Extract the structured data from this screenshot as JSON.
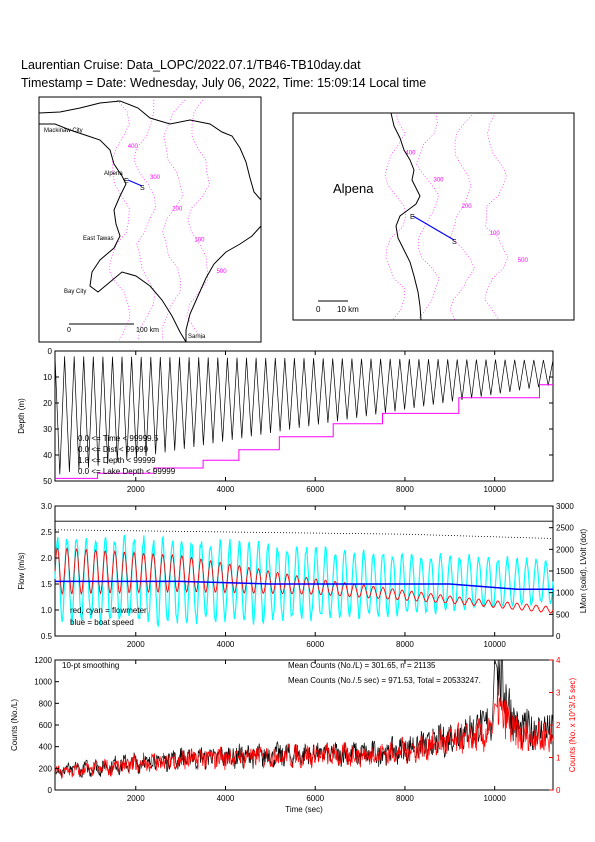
{
  "header": {
    "title_line": "Laurentian Cruise: Data_LOPC/2022.07.1/TB46-TB10day.dat",
    "timestamp_line": "Timestamp = Date: Wednesday, July 06, 2022, Time: 15:09:14 Local time"
  },
  "maps": {
    "left": {
      "places": [
        "Mackinaw City",
        "Alpena",
        "East Tawas",
        "Bay City",
        "Sarnia"
      ],
      "track_labels": [
        "E",
        "S"
      ],
      "scale_start": "0",
      "scale_end": "100 km"
    },
    "right": {
      "place": "Alpena",
      "track_labels": [
        "E",
        "S"
      ],
      "scale_start": "0",
      "scale_end": "10 km"
    },
    "contour_labels": [
      "400",
      "300",
      "200",
      "100",
      "500"
    ],
    "colors": {
      "contours": "#ff00ff",
      "track": "#0000ff",
      "land": "#000000"
    }
  },
  "chart_data": [
    {
      "type": "line",
      "panel": "depth",
      "ylabel": "Depth (m)",
      "ylim": [
        50,
        0
      ],
      "xlim": [
        200,
        11300
      ],
      "xticks": [
        2000,
        4000,
        6000,
        8000,
        10000
      ],
      "yticks": [
        0,
        10,
        20,
        30,
        40,
        50
      ],
      "legend": [
        "0.0 <= Time < 99999.5",
        "0.0 <= Dist < 99999",
        "1.8 <= Depth < 99999",
        "0.0 <= Lake Depth < 99999"
      ],
      "series": [
        {
          "color": "#000000",
          "tow_start": [
            200,
            49
          ],
          "tow_end": [
            11300,
            8
          ],
          "cycles": 52
        },
        {
          "color": "#ff00ff",
          "x": [
            200,
            1150,
            1150,
            2400,
            2400,
            3500,
            3500,
            4300,
            4300,
            5200,
            5200,
            6400,
            6400,
            7500,
            7500,
            9200,
            9200,
            11000,
            11000,
            11300
          ],
          "y": [
            49,
            49,
            47,
            47,
            45,
            45,
            42,
            42,
            38,
            38,
            33,
            33,
            28,
            28,
            24,
            24,
            18,
            18,
            13,
            13
          ]
        }
      ]
    },
    {
      "type": "line",
      "panel": "flow",
      "ylabel": "Flow (m/s)",
      "ylabel_right": "LMon (solid), LVolt (dot)",
      "ylim": [
        0.5,
        3.0
      ],
      "ylim_right": [
        0,
        3000
      ],
      "xticks": [
        2000,
        4000,
        6000,
        8000,
        10000
      ],
      "yticks": [
        0.5,
        1.0,
        1.5,
        2.0,
        2.5,
        3.0
      ],
      "yticks_right": [
        0,
        500,
        1000,
        1500,
        2000,
        2500,
        3000
      ],
      "legend": [
        "red, cyan = flowmeter",
        "blue = boat speed"
      ],
      "series": [
        {
          "color": "#00ffff",
          "center": [
            1.6,
            1.55,
            1.5,
            1.5,
            1.55
          ],
          "amplitude": [
            0.9,
            0.9,
            0.75,
            0.6,
            0.45
          ],
          "x": [
            200,
            3000,
            6000,
            9000,
            11300
          ]
        },
        {
          "color": "#ff0000",
          "center": [
            1.75,
            1.7,
            1.45,
            1.2,
            1.0
          ],
          "amplitude": [
            0.45,
            0.35,
            0.15,
            0.07,
            0.06
          ],
          "x": [
            200,
            3000,
            6000,
            9000,
            11300
          ]
        },
        {
          "color": "#0000ff",
          "x": [
            200,
            1500,
            3000,
            5000,
            7000,
            9000,
            10500,
            11300
          ],
          "y": [
            1.55,
            1.55,
            1.55,
            1.5,
            1.5,
            1.5,
            1.4,
            1.4
          ]
        },
        {
          "color": "#000000",
          "style": "solid",
          "x": [
            200,
            11300
          ],
          "y_right": [
            2650,
            2650
          ]
        },
        {
          "color": "#000000",
          "style": "dot",
          "x": [
            200,
            8000,
            11300
          ],
          "y_right": [
            2450,
            2350,
            2250
          ]
        }
      ]
    },
    {
      "type": "line",
      "panel": "counts",
      "xlabel": "Time (sec)",
      "ylabel": "Counts (No./L)",
      "ylabel_right": "Counts (No. x 10^3/.5 sec)",
      "ylim": [
        0,
        1200
      ],
      "ylim_right": [
        0,
        4
      ],
      "xticks": [
        2000,
        4000,
        6000,
        8000,
        10000
      ],
      "yticks": [
        0,
        200,
        400,
        600,
        800,
        1000,
        1200
      ],
      "yticks_right": [
        0,
        1,
        2,
        3,
        4
      ],
      "annotations": {
        "smoothing": "10-pt smoothing",
        "mean_line1": "Mean Counts (No./L) = 301.65, n = 21135",
        "mean_line2": "Mean Counts (No./.5 sec) = 971.53, Total = 20533247."
      },
      "series": [
        {
          "color": "#000000",
          "x": [
            200,
            1000,
            2000,
            3000,
            4000,
            5000,
            6000,
            7000,
            7500,
            8000,
            8500,
            9000,
            9500,
            9950,
            10000,
            10500,
            11300
          ],
          "y": [
            180,
            200,
            250,
            290,
            310,
            320,
            330,
            330,
            340,
            380,
            420,
            480,
            560,
            620,
            1200,
            560,
            560
          ]
        },
        {
          "color": "#ff0000",
          "x": [
            200,
            1000,
            2000,
            3000,
            4000,
            5000,
            6000,
            7000,
            7500,
            8000,
            8500,
            9000,
            9500,
            9950,
            10000,
            10500,
            11300
          ],
          "y": [
            160,
            190,
            240,
            280,
            300,
            310,
            320,
            320,
            330,
            360,
            400,
            450,
            490,
            520,
            800,
            500,
            480
          ]
        }
      ]
    }
  ]
}
